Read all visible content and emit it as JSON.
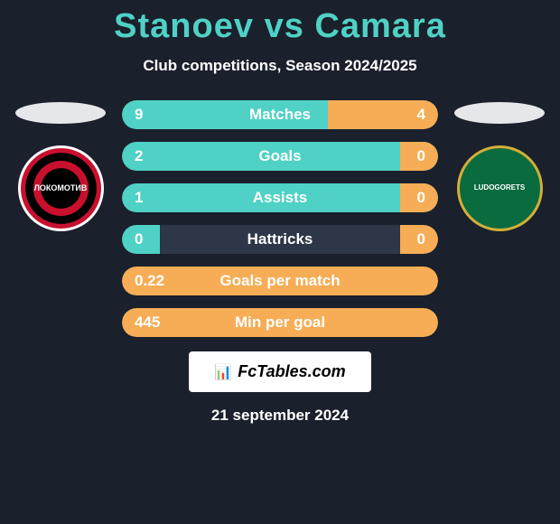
{
  "title": {
    "player1": "Stanoev",
    "vs": "vs",
    "player2": "Camara",
    "color": "#4fd1c5"
  },
  "subtitle": "Club competitions, Season 2024/2025",
  "left_ellipse_color": "#e5e7eb",
  "right_ellipse_color": "#e5e7eb",
  "bar_bg": "#2d3748",
  "colors": {
    "left_bar": "#4fd1c5",
    "right_bar": "#f6ad55",
    "full_left": "#f6ad55"
  },
  "stats": [
    {
      "label": "Matches",
      "left_val": "9",
      "right_val": "4",
      "left_pct": 65,
      "right_pct": 35,
      "left_color": "#4fd1c5",
      "right_color": "#f6ad55"
    },
    {
      "label": "Goals",
      "left_val": "2",
      "right_val": "0",
      "left_pct": 100,
      "right_pct": 12,
      "left_color": "#4fd1c5",
      "right_color": "#f6ad55"
    },
    {
      "label": "Assists",
      "left_val": "1",
      "right_val": "0",
      "left_pct": 100,
      "right_pct": 12,
      "left_color": "#4fd1c5",
      "right_color": "#f6ad55"
    },
    {
      "label": "Hattricks",
      "left_val": "0",
      "right_val": "0",
      "left_pct": 12,
      "right_pct": 12,
      "left_color": "#4fd1c5",
      "right_color": "#f6ad55"
    },
    {
      "label": "Goals per match",
      "left_val": "0.22",
      "right_val": "",
      "left_pct": 100,
      "right_pct": 0,
      "left_color": "#f6ad55",
      "right_color": "#f6ad55"
    },
    {
      "label": "Min per goal",
      "left_val": "445",
      "right_val": "",
      "left_pct": 100,
      "right_pct": 0,
      "left_color": "#f6ad55",
      "right_color": "#f6ad55"
    }
  ],
  "branding": {
    "icon": "📊",
    "text": "FcTables.com"
  },
  "date": "21 september 2024",
  "logo_left_text": "ЛОКОМОТИВ",
  "logo_right_text": "LUDOGORETS"
}
